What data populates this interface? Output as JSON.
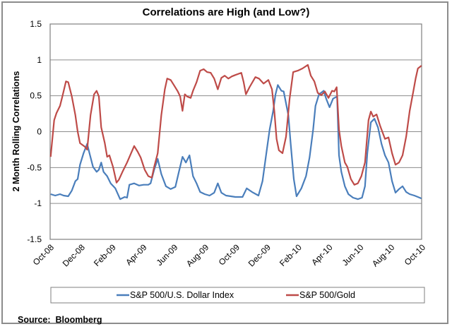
{
  "chart_data": {
    "type": "line",
    "title": "Correlations are High (and Low?)",
    "xlabel": "",
    "ylabel": "2 Month Rolling Correlations",
    "ylim": [
      -1.5,
      1.5
    ],
    "yticks": [
      1.5,
      1,
      0.5,
      0,
      -0.5,
      -1,
      -1.5
    ],
    "ytick_labels": [
      "1.5",
      "1",
      "0.5",
      "0",
      "-0.5",
      "-1",
      "-1.5"
    ],
    "x_unit": "months since Oct-08",
    "xlim": [
      0,
      24
    ],
    "xticks": [
      0,
      2,
      4,
      6,
      8,
      10,
      12,
      14,
      16,
      18,
      20,
      22,
      24
    ],
    "xtick_labels": [
      "Oct-08",
      "Dec-08",
      "Feb-09",
      "Apr-09",
      "Jun-09",
      "Aug-09",
      "Oct-09",
      "Dec-09",
      "Feb-10",
      "Apr-10",
      "Jun-10",
      "Aug-10",
      "Oct-10"
    ],
    "grid": "horizontal",
    "legend_position": "bottom",
    "series": [
      {
        "name": "S&P 500/U.S. Dollar Index",
        "color": "#4a7ebb",
        "points": [
          [
            0.03,
            -0.87
          ],
          [
            0.33,
            -0.89
          ],
          [
            0.64,
            -0.87
          ],
          [
            0.87,
            -0.89
          ],
          [
            1.17,
            -0.9
          ],
          [
            1.4,
            -0.82
          ],
          [
            1.63,
            -0.69
          ],
          [
            1.78,
            -0.66
          ],
          [
            1.93,
            -0.46
          ],
          [
            2.16,
            -0.3
          ],
          [
            2.39,
            -0.17
          ],
          [
            2.54,
            -0.3
          ],
          [
            2.77,
            -0.49
          ],
          [
            3.0,
            -0.56
          ],
          [
            3.15,
            -0.53
          ],
          [
            3.3,
            -0.43
          ],
          [
            3.45,
            -0.56
          ],
          [
            3.68,
            -0.62
          ],
          [
            3.91,
            -0.72
          ],
          [
            4.21,
            -0.79
          ],
          [
            4.52,
            -0.94
          ],
          [
            4.82,
            -0.91
          ],
          [
            4.97,
            -0.92
          ],
          [
            5.12,
            -0.74
          ],
          [
            5.43,
            -0.72
          ],
          [
            5.74,
            -0.75
          ],
          [
            6.04,
            -0.74
          ],
          [
            6.34,
            -0.74
          ],
          [
            6.49,
            -0.72
          ],
          [
            6.72,
            -0.53
          ],
          [
            6.95,
            -0.38
          ],
          [
            7.18,
            -0.59
          ],
          [
            7.48,
            -0.76
          ],
          [
            7.79,
            -0.8
          ],
          [
            8.09,
            -0.77
          ],
          [
            8.32,
            -0.56
          ],
          [
            8.55,
            -0.35
          ],
          [
            8.77,
            -0.43
          ],
          [
            9.0,
            -0.33
          ],
          [
            9.23,
            -0.62
          ],
          [
            9.46,
            -0.72
          ],
          [
            9.69,
            -0.84
          ],
          [
            9.99,
            -0.87
          ],
          [
            10.3,
            -0.89
          ],
          [
            10.6,
            -0.85
          ],
          [
            10.83,
            -0.72
          ],
          [
            11.06,
            -0.85
          ],
          [
            11.36,
            -0.89
          ],
          [
            11.67,
            -0.9
          ],
          [
            11.97,
            -0.91
          ],
          [
            12.43,
            -0.91
          ],
          [
            12.7,
            -0.79
          ],
          [
            13.04,
            -0.84
          ],
          [
            13.46,
            -0.89
          ],
          [
            13.72,
            -0.69
          ],
          [
            13.95,
            -0.33
          ],
          [
            14.18,
            0.03
          ],
          [
            14.41,
            0.29
          ],
          [
            14.56,
            0.52
          ],
          [
            14.71,
            0.65
          ],
          [
            14.94,
            0.57
          ],
          [
            15.09,
            0.56
          ],
          [
            15.39,
            0.23
          ],
          [
            15.54,
            -0.17
          ],
          [
            15.74,
            -0.66
          ],
          [
            15.92,
            -0.9
          ],
          [
            16.23,
            -0.79
          ],
          [
            16.53,
            -0.62
          ],
          [
            16.76,
            -0.36
          ],
          [
            16.99,
            0.03
          ],
          [
            17.14,
            0.36
          ],
          [
            17.37,
            0.52
          ],
          [
            17.67,
            0.57
          ],
          [
            17.83,
            0.46
          ],
          [
            18.05,
            0.34
          ],
          [
            18.28,
            0.46
          ],
          [
            18.54,
            0.49
          ],
          [
            18.66,
            -0.33
          ],
          [
            18.81,
            -0.56
          ],
          [
            19.04,
            -0.76
          ],
          [
            19.27,
            -0.87
          ],
          [
            19.57,
            -0.92
          ],
          [
            19.88,
            -0.94
          ],
          [
            20.15,
            -0.92
          ],
          [
            20.34,
            -0.76
          ],
          [
            20.49,
            -0.3
          ],
          [
            20.72,
            0.13
          ],
          [
            20.95,
            0.18
          ],
          [
            21.18,
            0.06
          ],
          [
            21.41,
            -0.17
          ],
          [
            21.63,
            -0.33
          ],
          [
            21.86,
            -0.43
          ],
          [
            22.09,
            -0.69
          ],
          [
            22.31,
            -0.85
          ],
          [
            22.54,
            -0.8
          ],
          [
            22.77,
            -0.76
          ],
          [
            23.0,
            -0.84
          ],
          [
            23.23,
            -0.87
          ],
          [
            23.53,
            -0.89
          ],
          [
            23.76,
            -0.91
          ],
          [
            23.99,
            -0.93
          ]
        ]
      },
      {
        "name": "S&P 500/Gold",
        "color": "#be4b48",
        "points": [
          [
            0.03,
            -0.35
          ],
          [
            0.26,
            0.16
          ],
          [
            0.41,
            0.26
          ],
          [
            0.64,
            0.36
          ],
          [
            0.79,
            0.49
          ],
          [
            1.02,
            0.7
          ],
          [
            1.17,
            0.69
          ],
          [
            1.4,
            0.49
          ],
          [
            1.63,
            0.23
          ],
          [
            1.78,
            0.0
          ],
          [
            1.93,
            -0.16
          ],
          [
            2.24,
            -0.21
          ],
          [
            2.39,
            -0.25
          ],
          [
            2.61,
            0.23
          ],
          [
            2.84,
            0.52
          ],
          [
            3.0,
            0.57
          ],
          [
            3.15,
            0.49
          ],
          [
            3.3,
            0.06
          ],
          [
            3.53,
            -0.16
          ],
          [
            3.68,
            -0.35
          ],
          [
            3.83,
            -0.33
          ],
          [
            4.06,
            -0.49
          ],
          [
            4.29,
            -0.71
          ],
          [
            4.44,
            -0.67
          ],
          [
            4.67,
            -0.56
          ],
          [
            4.97,
            -0.43
          ],
          [
            5.43,
            -0.2
          ],
          [
            5.66,
            -0.28
          ],
          [
            5.85,
            -0.36
          ],
          [
            6.11,
            -0.53
          ],
          [
            6.34,
            -0.62
          ],
          [
            6.57,
            -0.64
          ],
          [
            6.72,
            -0.49
          ],
          [
            6.95,
            -0.3
          ],
          [
            7.18,
            0.23
          ],
          [
            7.41,
            0.59
          ],
          [
            7.56,
            0.74
          ],
          [
            7.79,
            0.72
          ],
          [
            8.02,
            0.64
          ],
          [
            8.25,
            0.56
          ],
          [
            8.4,
            0.49
          ],
          [
            8.55,
            0.29
          ],
          [
            8.7,
            0.52
          ],
          [
            8.85,
            0.49
          ],
          [
            9.08,
            0.47
          ],
          [
            9.23,
            0.57
          ],
          [
            9.46,
            0.69
          ],
          [
            9.69,
            0.85
          ],
          [
            9.92,
            0.87
          ],
          [
            10.14,
            0.83
          ],
          [
            10.37,
            0.82
          ],
          [
            10.6,
            0.74
          ],
          [
            10.83,
            0.59
          ],
          [
            11.06,
            0.75
          ],
          [
            11.28,
            0.78
          ],
          [
            11.51,
            0.74
          ],
          [
            11.74,
            0.77
          ],
          [
            11.97,
            0.79
          ],
          [
            12.35,
            0.82
          ],
          [
            12.5,
            0.69
          ],
          [
            12.65,
            0.52
          ],
          [
            12.88,
            0.62
          ],
          [
            13.26,
            0.76
          ],
          [
            13.49,
            0.74
          ],
          [
            13.79,
            0.67
          ],
          [
            14.1,
            0.72
          ],
          [
            14.33,
            0.59
          ],
          [
            14.48,
            0.29
          ],
          [
            14.63,
            -0.1
          ],
          [
            14.78,
            -0.26
          ],
          [
            15.01,
            -0.3
          ],
          [
            15.24,
            -0.07
          ],
          [
            15.47,
            0.46
          ],
          [
            15.7,
            0.83
          ],
          [
            16.0,
            0.85
          ],
          [
            16.3,
            0.88
          ],
          [
            16.65,
            0.93
          ],
          [
            16.84,
            0.78
          ],
          [
            17.07,
            0.7
          ],
          [
            17.29,
            0.54
          ],
          [
            17.52,
            0.51
          ],
          [
            17.75,
            0.56
          ],
          [
            17.98,
            0.47
          ],
          [
            18.21,
            0.57
          ],
          [
            18.36,
            0.56
          ],
          [
            18.51,
            0.62
          ],
          [
            18.66,
            0.03
          ],
          [
            18.81,
            -0.2
          ],
          [
            19.04,
            -0.43
          ],
          [
            19.2,
            -0.49
          ],
          [
            19.43,
            -0.66
          ],
          [
            19.65,
            -0.74
          ],
          [
            19.88,
            -0.72
          ],
          [
            20.11,
            -0.62
          ],
          [
            20.34,
            -0.43
          ],
          [
            20.57,
            0.16
          ],
          [
            20.72,
            0.28
          ],
          [
            20.87,
            0.21
          ],
          [
            21.09,
            0.24
          ],
          [
            21.32,
            0.08
          ],
          [
            21.63,
            -0.1
          ],
          [
            21.86,
            -0.08
          ],
          [
            22.09,
            -0.3
          ],
          [
            22.31,
            -0.46
          ],
          [
            22.54,
            -0.43
          ],
          [
            22.77,
            -0.33
          ],
          [
            23.0,
            -0.07
          ],
          [
            23.23,
            0.29
          ],
          [
            23.46,
            0.56
          ],
          [
            23.61,
            0.74
          ],
          [
            23.76,
            0.88
          ],
          [
            23.99,
            0.92
          ]
        ]
      }
    ],
    "annotations": [
      "Source:  Bloomberg"
    ]
  },
  "legend": {
    "items": [
      "S&P 500/U.S. Dollar Index",
      "S&P 500/Gold"
    ]
  },
  "footer": {
    "source": "Source:  Bloomberg"
  },
  "colors": {
    "gridline": "#8c8c8c",
    "plot_border": "#7f7f7f",
    "frame": "#8c8c8c"
  }
}
